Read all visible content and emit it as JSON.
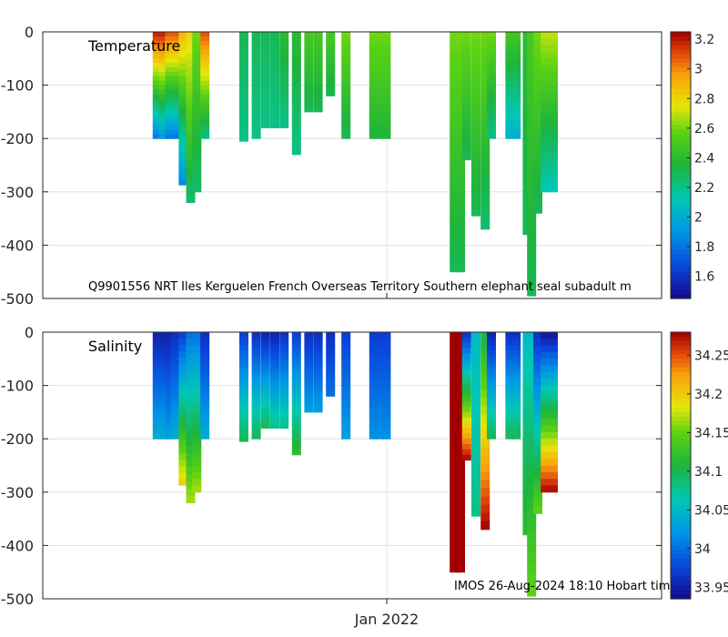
{
  "chart_data": [
    {
      "type": "heatmap",
      "title": "Temperature",
      "annotation": "Q9901556 NRT Iles Kerguelen French Overseas Territory Southern elephant seal subadult m",
      "ylim": [
        -500,
        0
      ],
      "yticks": [
        "0",
        "-100",
        "-200",
        "-300",
        "-400",
        "-500"
      ],
      "ytick_values": [
        0,
        -100,
        -200,
        -300,
        -400,
        -500
      ],
      "colorbar": {
        "range": [
          1.45,
          3.25
        ],
        "ticks": [
          "1.6",
          "1.8",
          "2",
          "2.2",
          "2.4",
          "2.6",
          "2.8",
          "3",
          "3.2"
        ],
        "tick_values": [
          1.6,
          1.8,
          2.0,
          2.2,
          2.4,
          2.6,
          2.8,
          3.0,
          3.2
        ]
      },
      "profiles": [
        {
          "t": 0.185,
          "max_depth": 200,
          "surface": 3.2,
          "deep": 1.8
        },
        {
          "t": 0.195,
          "max_depth": 200,
          "surface": 3.2,
          "deep": 1.9
        },
        {
          "t": 0.205,
          "max_depth": 200,
          "surface": 3.1,
          "deep": 1.8
        },
        {
          "t": 0.215,
          "max_depth": 200,
          "surface": 3.1,
          "deep": 1.8
        },
        {
          "t": 0.227,
          "max_depth": 287,
          "surface": 2.9,
          "deep": 1.85
        },
        {
          "t": 0.239,
          "max_depth": 320,
          "surface": 2.8,
          "deep": 2.25
        },
        {
          "t": 0.249,
          "max_depth": 300,
          "surface": 2.6,
          "deep": 2.25
        },
        {
          "t": 0.262,
          "max_depth": 200,
          "surface": 3.1,
          "deep": 2.2
        },
        {
          "t": 0.325,
          "max_depth": 205,
          "surface": 2.3,
          "deep": 2.2
        },
        {
          "t": 0.345,
          "max_depth": 200,
          "surface": 2.3,
          "deep": 2.2
        },
        {
          "t": 0.36,
          "max_depth": 180,
          "surface": 2.3,
          "deep": 2.2
        },
        {
          "t": 0.375,
          "max_depth": 180,
          "surface": 2.3,
          "deep": 2.2
        },
        {
          "t": 0.39,
          "max_depth": 180,
          "surface": 2.4,
          "deep": 2.2
        },
        {
          "t": 0.41,
          "max_depth": 230,
          "surface": 2.4,
          "deep": 2.2
        },
        {
          "t": 0.43,
          "max_depth": 150,
          "surface": 2.5,
          "deep": 2.3
        },
        {
          "t": 0.445,
          "max_depth": 150,
          "surface": 2.5,
          "deep": 2.3
        },
        {
          "t": 0.465,
          "max_depth": 120,
          "surface": 2.5,
          "deep": 2.3
        },
        {
          "t": 0.49,
          "max_depth": 200,
          "surface": 2.6,
          "deep": 2.3
        },
        {
          "t": 0.535,
          "max_depth": 200,
          "surface": 2.6,
          "deep": 2.35
        },
        {
          "t": 0.545,
          "max_depth": 200,
          "surface": 2.6,
          "deep": 2.35
        },
        {
          "t": 0.555,
          "max_depth": 200,
          "surface": 2.6,
          "deep": 2.35
        },
        {
          "t": 0.665,
          "max_depth": 450,
          "surface": 2.6,
          "deep": 2.3
        },
        {
          "t": 0.675,
          "max_depth": 450,
          "surface": 2.6,
          "deep": 2.3
        },
        {
          "t": 0.7,
          "max_depth": 345,
          "surface": 2.6,
          "deep": 2.3
        },
        {
          "t": 0.685,
          "max_depth": 240,
          "surface": 2.6,
          "deep": 2.3
        },
        {
          "t": 0.715,
          "max_depth": 370,
          "surface": 2.6,
          "deep": 2.25
        },
        {
          "t": 0.725,
          "max_depth": 200,
          "surface": 2.6,
          "deep": 2.2
        },
        {
          "t": 0.755,
          "max_depth": 200,
          "surface": 2.5,
          "deep": 2.0
        },
        {
          "t": 0.765,
          "max_depth": 200,
          "surface": 2.5,
          "deep": 2.0
        },
        {
          "t": 0.783,
          "max_depth": 380,
          "surface": 2.4,
          "deep": 2.3
        },
        {
          "t": 0.79,
          "max_depth": 495,
          "surface": 2.5,
          "deep": 2.3
        },
        {
          "t": 0.8,
          "max_depth": 340,
          "surface": 2.6,
          "deep": 2.3
        },
        {
          "t": 0.812,
          "max_depth": 300,
          "surface": 2.7,
          "deep": 2.1
        },
        {
          "t": 0.825,
          "max_depth": 300,
          "surface": 2.7,
          "deep": 2.1
        }
      ]
    },
    {
      "type": "heatmap",
      "title": "Salinity",
      "annotation": "IMOS 26-Aug-2024 18:10 Hobart tim",
      "ylim": [
        -500,
        0
      ],
      "yticks": [
        "0",
        "-100",
        "-200",
        "-300",
        "-400",
        "-500"
      ],
      "ytick_values": [
        0,
        -100,
        -200,
        -300,
        -400,
        -500
      ],
      "xticks": [
        "Jan 2022"
      ],
      "colorbar": {
        "range": [
          33.935,
          34.28
        ],
        "ticks": [
          "33.95",
          "34",
          "34.05",
          "34.1",
          "34.15",
          "34.2",
          "34.25"
        ],
        "tick_values": [
          33.95,
          34.0,
          34.05,
          34.1,
          34.15,
          34.2,
          34.25
        ]
      },
      "profiles": [
        {
          "t": 0.185,
          "max_depth": 200,
          "surface": 33.95,
          "deep": 34.04
        },
        {
          "t": 0.195,
          "max_depth": 200,
          "surface": 33.95,
          "deep": 34.04
        },
        {
          "t": 0.205,
          "max_depth": 200,
          "surface": 33.95,
          "deep": 34.03
        },
        {
          "t": 0.215,
          "max_depth": 200,
          "surface": 33.96,
          "deep": 34.04
        },
        {
          "t": 0.227,
          "max_depth": 287,
          "surface": 33.97,
          "deep": 34.2
        },
        {
          "t": 0.239,
          "max_depth": 320,
          "surface": 34.0,
          "deep": 34.17
        },
        {
          "t": 0.249,
          "max_depth": 300,
          "surface": 34.0,
          "deep": 34.17
        },
        {
          "t": 0.262,
          "max_depth": 200,
          "surface": 33.96,
          "deep": 34.04
        },
        {
          "t": 0.325,
          "max_depth": 205,
          "surface": 33.97,
          "deep": 34.1
        },
        {
          "t": 0.345,
          "max_depth": 200,
          "surface": 33.96,
          "deep": 34.1
        },
        {
          "t": 0.36,
          "max_depth": 180,
          "surface": 33.95,
          "deep": 34.1
        },
        {
          "t": 0.375,
          "max_depth": 180,
          "surface": 33.95,
          "deep": 34.08
        },
        {
          "t": 0.39,
          "max_depth": 180,
          "surface": 33.96,
          "deep": 34.08
        },
        {
          "t": 0.41,
          "max_depth": 230,
          "surface": 33.97,
          "deep": 34.12
        },
        {
          "t": 0.43,
          "max_depth": 150,
          "surface": 33.96,
          "deep": 34.03
        },
        {
          "t": 0.445,
          "max_depth": 150,
          "surface": 33.96,
          "deep": 34.03
        },
        {
          "t": 0.465,
          "max_depth": 120,
          "surface": 33.96,
          "deep": 34.0
        },
        {
          "t": 0.49,
          "max_depth": 200,
          "surface": 33.97,
          "deep": 34.03
        },
        {
          "t": 0.535,
          "max_depth": 200,
          "surface": 33.97,
          "deep": 34.02
        },
        {
          "t": 0.545,
          "max_depth": 200,
          "surface": 33.97,
          "deep": 34.02
        },
        {
          "t": 0.555,
          "max_depth": 200,
          "surface": 33.97,
          "deep": 34.02
        },
        {
          "t": 0.665,
          "max_depth": 450,
          "surface": 34.28,
          "deep": 34.28
        },
        {
          "t": 0.675,
          "max_depth": 450,
          "surface": 34.28,
          "deep": 34.28
        },
        {
          "t": 0.7,
          "max_depth": 345,
          "surface": 34.05,
          "deep": 34.08
        },
        {
          "t": 0.685,
          "max_depth": 240,
          "surface": 33.96,
          "deep": 34.28
        },
        {
          "t": 0.715,
          "max_depth": 370,
          "surface": 34.1,
          "deep": 34.28
        },
        {
          "t": 0.725,
          "max_depth": 200,
          "surface": 33.95,
          "deep": 34.1
        },
        {
          "t": 0.755,
          "max_depth": 200,
          "surface": 33.96,
          "deep": 34.1
        },
        {
          "t": 0.765,
          "max_depth": 200,
          "surface": 33.96,
          "deep": 34.1
        },
        {
          "t": 0.783,
          "max_depth": 380,
          "surface": 34.05,
          "deep": 34.12
        },
        {
          "t": 0.79,
          "max_depth": 495,
          "surface": 34.05,
          "deep": 34.15
        },
        {
          "t": 0.8,
          "max_depth": 340,
          "surface": 33.96,
          "deep": 34.15
        },
        {
          "t": 0.812,
          "max_depth": 300,
          "surface": 33.94,
          "deep": 34.28
        },
        {
          "t": 0.825,
          "max_depth": 300,
          "surface": 33.94,
          "deep": 34.28
        }
      ]
    }
  ],
  "colors": {
    "axis": "#262626",
    "grid": "#dcdcdc",
    "background": "#ffffff"
  }
}
